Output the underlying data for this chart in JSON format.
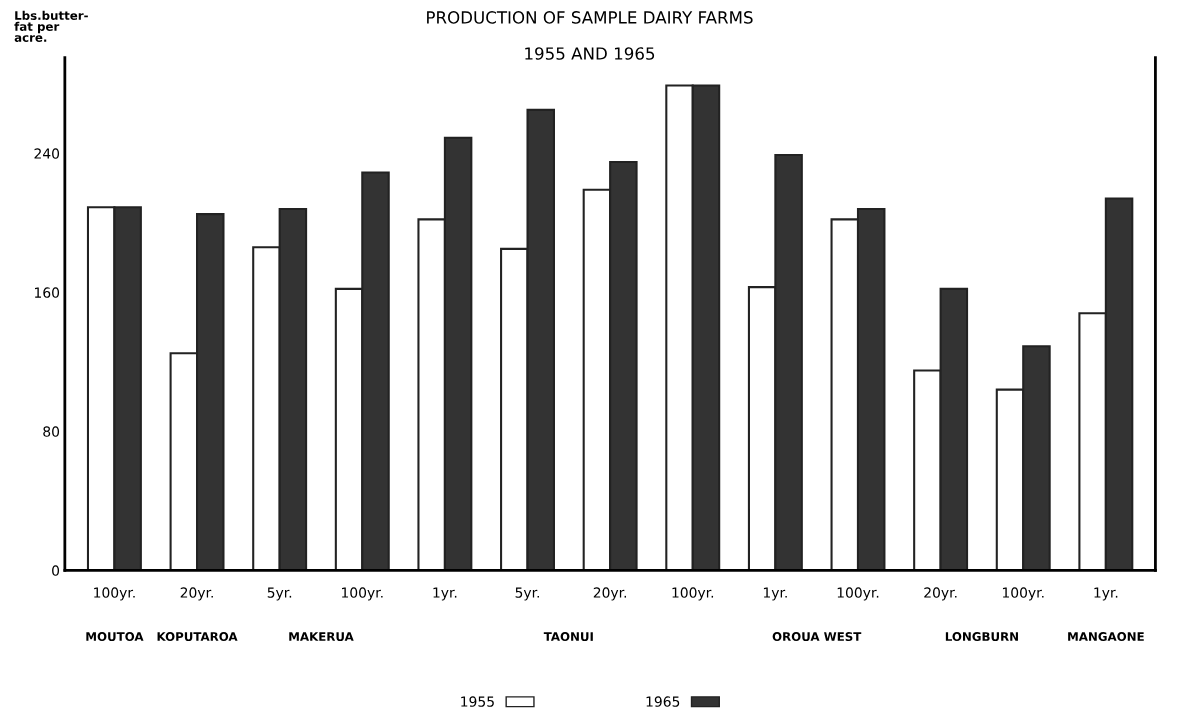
{
  "chart_data": {
    "type": "bar",
    "title": "PRODUCTION OF SAMPLE DAIRY FARMS",
    "subtitle": "1955 AND 1965",
    "ylabel": "Lbs.butter-\nfat per\nacre.",
    "categories": [
      "100yr.",
      "20yr.",
      "5yr.",
      "100yr.",
      "1yr.",
      "5yr.",
      "20yr.",
      "100yr.",
      "1yr.",
      "100yr.",
      "20yr.",
      "100yr.",
      "1yr."
    ],
    "series": [
      {
        "name": "1955",
        "color": "#ffffff",
        "values": [
          209,
          125,
          186,
          162,
          202,
          185,
          219,
          279,
          163,
          202,
          115,
          104,
          148
        ]
      },
      {
        "name": "1965",
        "color": "#333333",
        "values": [
          209,
          205,
          208,
          229,
          249,
          265,
          235,
          279,
          239,
          208,
          162,
          129,
          214
        ]
      }
    ],
    "annotations": [
      "MOUTOA",
      "KOPUTAROA",
      "MAKERUA",
      "TAONUI",
      "OROUA WEST",
      "LONGBURN",
      "MANGAONE"
    ],
    "ylim": [
      0,
      295
    ],
    "yticks": [
      0,
      80,
      160,
      240
    ],
    "grid": false,
    "legend": "bottom"
  }
}
